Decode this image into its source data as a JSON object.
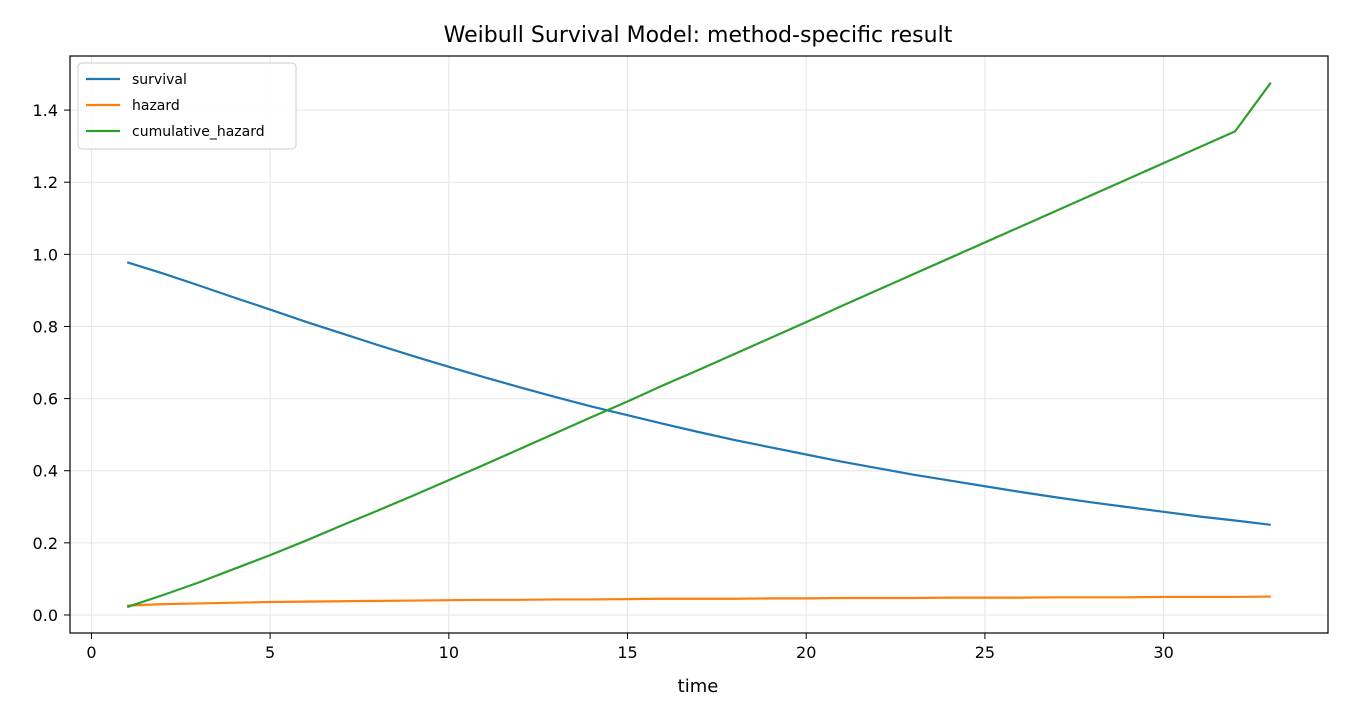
{
  "chart_data": {
    "type": "line",
    "title": "Weibull Survival Model: method-specific result",
    "xlabel": "time",
    "ylabel": "",
    "xlim": [
      -0.6,
      34.6
    ],
    "ylim": [
      -0.05,
      1.55
    ],
    "xticks": [
      0,
      5,
      10,
      15,
      20,
      25,
      30
    ],
    "yticks": [
      0.0,
      0.2,
      0.4,
      0.6,
      0.8,
      1.0,
      1.2,
      1.4
    ],
    "grid": true,
    "legend_position": "top-left",
    "x": [
      1,
      2,
      3,
      4,
      5,
      6,
      7,
      8,
      9,
      10,
      11,
      12,
      13,
      14,
      15,
      16,
      17,
      18,
      19,
      20,
      21,
      22,
      23,
      24,
      25,
      26,
      27,
      28,
      29,
      30,
      31,
      32,
      33
    ],
    "series": [
      {
        "name": "survival",
        "color": "#1f77b4",
        "values": [
          0.978,
          0.947,
          0.914,
          0.88,
          0.847,
          0.813,
          0.781,
          0.749,
          0.718,
          0.688,
          0.659,
          0.631,
          0.604,
          0.578,
          0.554,
          0.53,
          0.507,
          0.485,
          0.465,
          0.445,
          0.425,
          0.407,
          0.389,
          0.373,
          0.357,
          0.341,
          0.326,
          0.312,
          0.299,
          0.286,
          0.273,
          0.262,
          0.25
        ]
      },
      {
        "name": "hazard",
        "color": "#ff7f0e",
        "values": [
          0.026,
          0.03,
          0.032,
          0.034,
          0.036,
          0.037,
          0.038,
          0.039,
          0.04,
          0.041,
          0.042,
          0.042,
          0.043,
          0.043,
          0.044,
          0.045,
          0.045,
          0.045,
          0.046,
          0.046,
          0.047,
          0.047,
          0.047,
          0.048,
          0.048,
          0.048,
          0.049,
          0.049,
          0.049,
          0.05,
          0.05,
          0.05,
          0.051
        ]
      },
      {
        "name": "cumulative_hazard",
        "color": "#2ca02c",
        "values": [
          0.022,
          0.055,
          0.09,
          0.128,
          0.166,
          0.206,
          0.248,
          0.289,
          0.331,
          0.374,
          0.417,
          0.461,
          0.505,
          0.549,
          0.592,
          0.637,
          0.68,
          0.724,
          0.768,
          0.812,
          0.857,
          0.901,
          0.945,
          0.989,
          1.033,
          1.077,
          1.121,
          1.165,
          1.209,
          1.253,
          1.297,
          1.341,
          1.476
        ]
      }
    ]
  }
}
